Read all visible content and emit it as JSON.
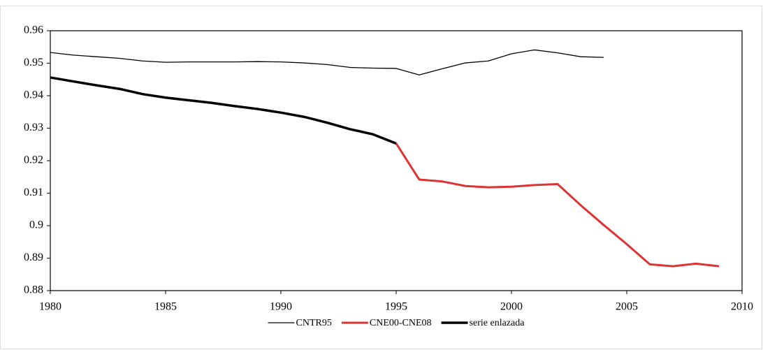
{
  "chart_data": {
    "type": "line",
    "x": [
      1980,
      1981,
      1982,
      1983,
      1984,
      1985,
      1986,
      1987,
      1988,
      1989,
      1990,
      1991,
      1992,
      1993,
      1994,
      1995,
      1996,
      1997,
      1998,
      1999,
      2000,
      2001,
      2002,
      2003,
      2004,
      2005,
      2006,
      2007,
      2008,
      2009
    ],
    "series": [
      {
        "name": "CNTR95",
        "color": "#000000",
        "values": [
          0.9533,
          0.9525,
          0.952,
          0.9515,
          0.9507,
          0.9503,
          0.9504,
          0.9504,
          0.9504,
          0.9505,
          0.9504,
          0.9501,
          0.9496,
          0.9487,
          0.9485,
          0.9484,
          0.9464,
          0.9483,
          0.9501,
          0.9507,
          0.9529,
          0.9541,
          0.9532,
          0.952,
          0.9518,
          null,
          null,
          null,
          null,
          null
        ]
      },
      {
        "name": "CNE00-CNE08",
        "color": "#dd3333",
        "values": [
          null,
          null,
          null,
          null,
          null,
          null,
          null,
          null,
          null,
          null,
          null,
          null,
          null,
          null,
          null,
          0.9253,
          0.9142,
          0.9136,
          0.9122,
          0.9118,
          0.912,
          0.9125,
          0.9128,
          0.9063,
          0.9002,
          0.8943,
          0.8881,
          0.8875,
          0.8883,
          0.8875
        ]
      },
      {
        "name": "serie enlazada",
        "color": "#000000",
        "values": [
          0.9456,
          0.9444,
          0.9432,
          0.9421,
          0.9405,
          0.9394,
          0.9386,
          0.9378,
          0.9368,
          0.9359,
          0.9348,
          0.9335,
          0.9317,
          0.9297,
          0.9281,
          0.9253,
          null,
          null,
          null,
          null,
          null,
          null,
          null,
          null,
          null,
          null,
          null,
          null,
          null,
          null
        ]
      }
    ],
    "xlim": [
      1980,
      2010
    ],
    "xticks": [
      1980,
      1985,
      1990,
      1995,
      2000,
      2005,
      2010
    ],
    "ylim": [
      0.88,
      0.96
    ],
    "yticks": [
      0.88,
      0.89,
      0.9,
      0.91,
      0.92,
      0.93,
      0.94,
      0.95,
      0.96
    ],
    "grid": false,
    "legend": "bottom"
  }
}
